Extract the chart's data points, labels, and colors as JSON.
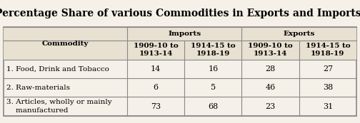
{
  "title": "Percentage Share of various Commodities in Exports and Imports.",
  "col_headers": [
    "1909-10 to\n1913-14",
    "1914-15 to\n1918-19",
    "1909-10 to\n1913-14",
    "1914-15 to\n1918-19"
  ],
  "row_labels": [
    "1. Food, Drink and Tobacco",
    "2. Raw-materials",
    "3. Articles, wholly or mainly\n    manufactured"
  ],
  "data": [
    [
      14,
      16,
      28,
      27
    ],
    [
      6,
      5,
      46,
      38
    ],
    [
      73,
      68,
      23,
      31
    ]
  ],
  "background_color": "#f5f0e8",
  "border_color": "#888888",
  "header_bg": "#e8e0d0",
  "title_fontsize": 10,
  "header_fontsize": 7.5,
  "cell_fontsize": 8,
  "row_label_fontsize": 7.5
}
